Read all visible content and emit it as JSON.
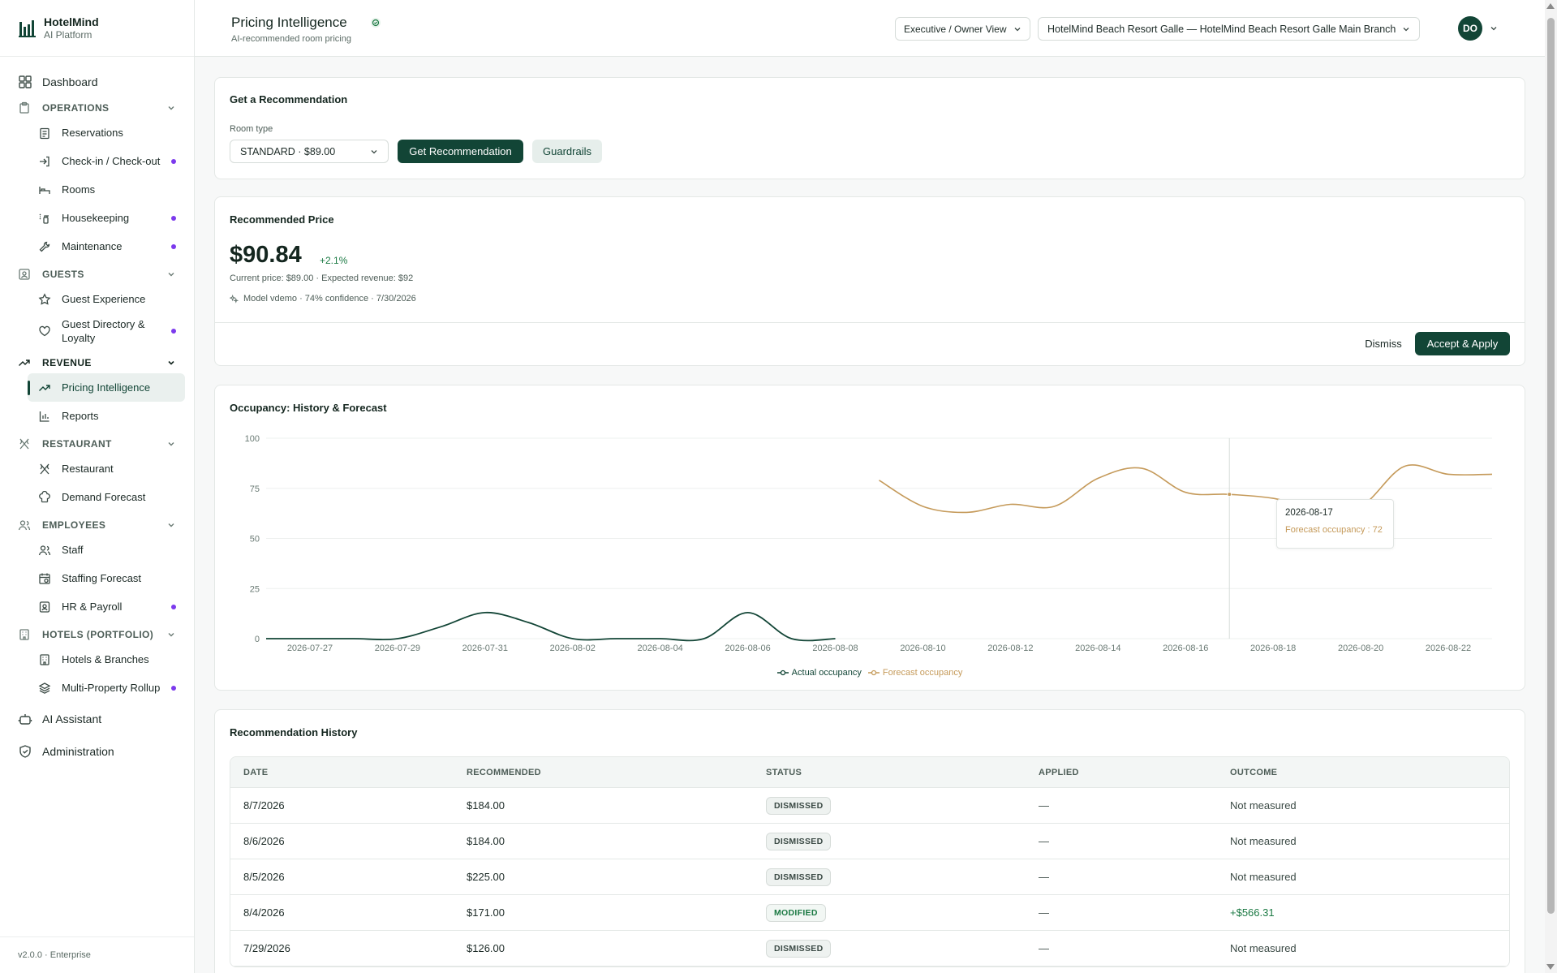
{
  "brand": {
    "name": "HotelMind",
    "subtitle": "AI Platform"
  },
  "sidebar": {
    "dashboard": "Dashboard",
    "sections": [
      {
        "title": "OPERATIONS",
        "items": [
          "Reservations",
          "Check-in / Check-out",
          "Rooms",
          "Housekeeping",
          "Maintenance"
        ]
      },
      {
        "title": "GUESTS",
        "items": [
          "Guest Experience",
          "Guest Directory & Loyalty"
        ]
      },
      {
        "title": "REVENUE",
        "items": [
          "Pricing Intelligence",
          "Reports"
        ]
      },
      {
        "title": "RESTAURANT",
        "items": [
          "Restaurant",
          "Demand Forecast"
        ]
      },
      {
        "title": "EMPLOYEES",
        "items": [
          "Staff",
          "Staffing Forecast",
          "HR & Payroll"
        ]
      },
      {
        "title": "HOTELS (PORTFOLIO)",
        "items": [
          "Hotels & Branches",
          "Multi-Property Rollup"
        ]
      }
    ],
    "ai_assistant": "AI Assistant",
    "administration": "Administration",
    "version": "v2.0.0 · Enterprise"
  },
  "header": {
    "title": "Pricing Intelligence",
    "subtitle": "AI-recommended room pricing",
    "view_select": "Executive / Owner View",
    "property_select": "HotelMind Beach Resort Galle — HotelMind Beach Resort Galle Main Branch",
    "avatar_initials": "DO"
  },
  "recommendation_form": {
    "title": "Get a Recommendation",
    "room_type_label": "Room type",
    "room_type_value": "STANDARD · $89.00",
    "get_button": "Get Recommendation",
    "guardrails_button": "Guardrails"
  },
  "recommended": {
    "title": "Recommended Price",
    "price": "$90.84",
    "delta": "+2.1%",
    "meta": "Current price: $89.00 · Expected revenue: $92",
    "model": "Model vdemo · 74% confidence · 7/30/2026",
    "dismiss": "Dismiss",
    "accept": "Accept & Apply"
  },
  "chart_data": {
    "type": "line",
    "title": "Occupancy: History & Forecast",
    "ylim": [
      0,
      100
    ],
    "yticks": [
      "0",
      "25",
      "50",
      "75",
      "100"
    ],
    "xticks": [
      "2026-07-27",
      "2026-07-29",
      "2026-07-31",
      "2026-08-02",
      "2026-08-04",
      "2026-08-06",
      "2026-08-08",
      "2026-08-10",
      "2026-08-12",
      "2026-08-14",
      "2026-08-16",
      "2026-08-18",
      "2026-08-20",
      "2026-08-22"
    ],
    "x_start": "2026-07-26",
    "x_end": "2026-08-23",
    "grid": true,
    "legend": "bottom",
    "series": [
      {
        "name": "Actual occupancy",
        "color": "#124536",
        "x": [
          "2026-07-26",
          "2026-07-27",
          "2026-07-28",
          "2026-07-29",
          "2026-07-30",
          "2026-07-31",
          "2026-08-01",
          "2026-08-02",
          "2026-08-03",
          "2026-08-04",
          "2026-08-05",
          "2026-08-06",
          "2026-08-07",
          "2026-08-08"
        ],
        "y": [
          0,
          0,
          0,
          0,
          6,
          13,
          8,
          0,
          0,
          0,
          0,
          13,
          0,
          0
        ]
      },
      {
        "name": "Forecast occupancy",
        "color": "#c59a5a",
        "x": [
          "2026-08-09",
          "2026-08-10",
          "2026-08-11",
          "2026-08-12",
          "2026-08-13",
          "2026-08-14",
          "2026-08-15",
          "2026-08-16",
          "2026-08-17",
          "2026-08-18",
          "2026-08-19",
          "2026-08-20",
          "2026-08-21",
          "2026-08-22",
          "2026-08-23"
        ],
        "y": [
          79,
          66,
          63,
          67,
          66,
          80,
          85,
          73,
          72,
          70,
          65,
          66,
          86,
          82,
          82
        ]
      }
    ],
    "tooltip": {
      "date": "2026-08-17",
      "label": "Forecast occupancy : 72"
    }
  },
  "history": {
    "title": "Recommendation History",
    "columns": [
      "DATE",
      "RECOMMENDED",
      "STATUS",
      "APPLIED",
      "OUTCOME"
    ],
    "rows": [
      {
        "date": "8/7/2026",
        "recommended": "$184.00",
        "status": "DISMISSED",
        "applied": "—",
        "outcome": "Not measured"
      },
      {
        "date": "8/6/2026",
        "recommended": "$184.00",
        "status": "DISMISSED",
        "applied": "—",
        "outcome": "Not measured"
      },
      {
        "date": "8/5/2026",
        "recommended": "$225.00",
        "status": "DISMISSED",
        "applied": "—",
        "outcome": "Not measured"
      },
      {
        "date": "8/4/2026",
        "recommended": "$171.00",
        "status": "MODIFIED",
        "applied": "—",
        "outcome": "+$566.31"
      },
      {
        "date": "7/29/2026",
        "recommended": "$126.00",
        "status": "DISMISSED",
        "applied": "—",
        "outcome": "Not measured"
      }
    ]
  }
}
